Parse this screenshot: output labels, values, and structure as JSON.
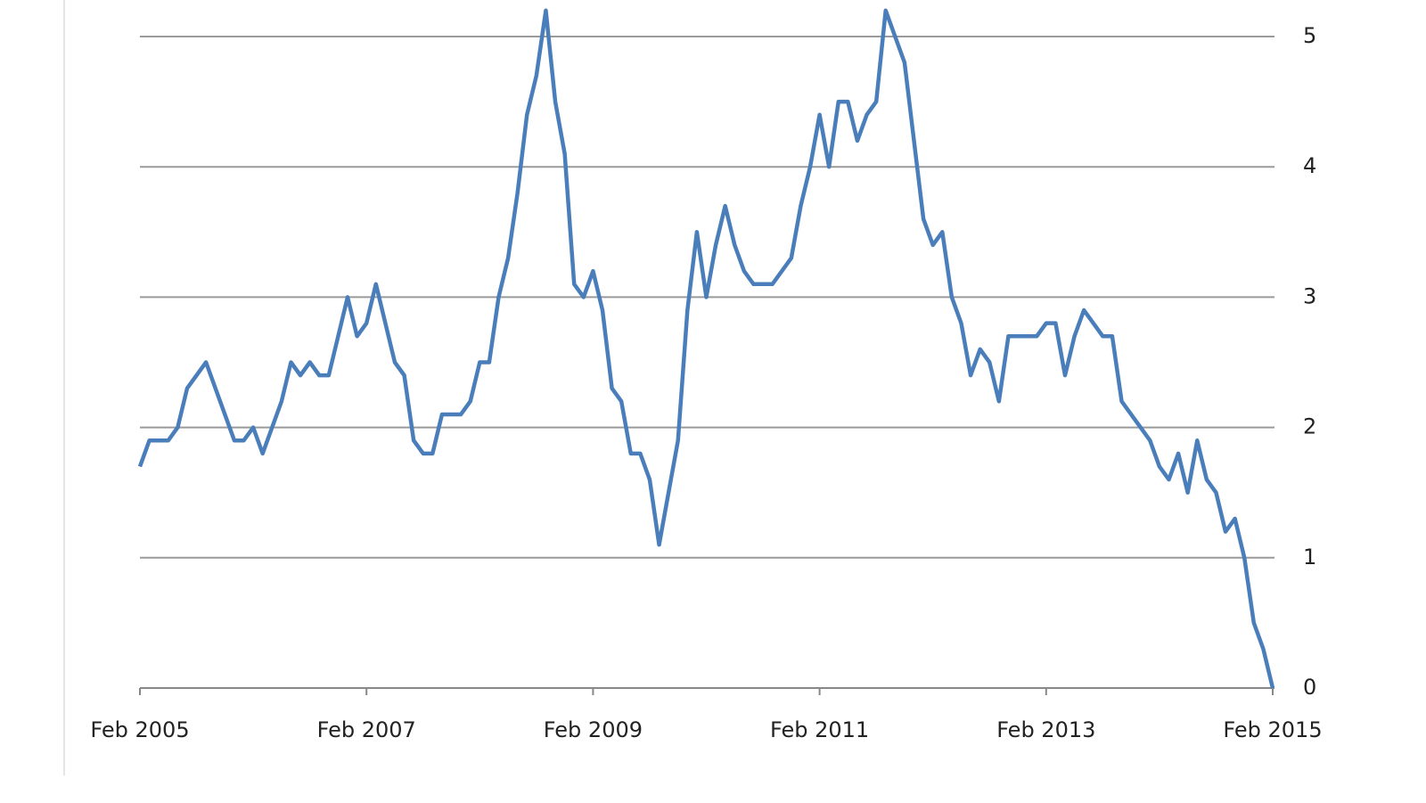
{
  "chart_data": {
    "type": "line",
    "categories": [
      "Feb 2005",
      null,
      null,
      null,
      null,
      null,
      null,
      null,
      null,
      null,
      null,
      null,
      null,
      null,
      null,
      null,
      null,
      null,
      null,
      null,
      null,
      null,
      null,
      null,
      "Feb 2007",
      null,
      null,
      null,
      null,
      null,
      null,
      null,
      null,
      null,
      null,
      null,
      null,
      null,
      null,
      null,
      null,
      null,
      null,
      null,
      null,
      null,
      null,
      null,
      "Feb 2009",
      null,
      null,
      null,
      null,
      null,
      null,
      null,
      null,
      null,
      null,
      null,
      null,
      null,
      null,
      null,
      null,
      null,
      null,
      null,
      null,
      null,
      null,
      null,
      "Feb 2011",
      null,
      null,
      null,
      null,
      null,
      null,
      null,
      null,
      null,
      null,
      null,
      null,
      null,
      null,
      null,
      null,
      null,
      null,
      null,
      null,
      null,
      null,
      null,
      "Feb 2013",
      null,
      null,
      null,
      null,
      null,
      null,
      null,
      null,
      null,
      null,
      null,
      null,
      null,
      null,
      null,
      null,
      null,
      null,
      null,
      null,
      null,
      null,
      null,
      "Feb 2015"
    ],
    "values": [
      1.7,
      1.9,
      1.9,
      1.9,
      2.0,
      2.3,
      2.4,
      2.5,
      2.3,
      2.1,
      1.9,
      1.9,
      2.0,
      1.8,
      2.0,
      2.2,
      2.5,
      2.4,
      2.5,
      2.4,
      2.4,
      2.7,
      3.0,
      2.7,
      2.8,
      3.1,
      2.8,
      2.5,
      2.4,
      1.9,
      1.8,
      1.8,
      2.1,
      2.1,
      2.1,
      2.2,
      2.5,
      2.5,
      3.0,
      3.3,
      3.8,
      4.4,
      4.7,
      5.2,
      4.5,
      4.1,
      3.1,
      3.0,
      3.2,
      2.9,
      2.3,
      2.2,
      1.8,
      1.8,
      1.6,
      1.1,
      1.5,
      1.9,
      2.9,
      3.5,
      3.0,
      3.4,
      3.7,
      3.4,
      3.2,
      3.1,
      3.1,
      3.1,
      3.2,
      3.3,
      3.7,
      4.0,
      4.4,
      4.0,
      4.5,
      4.5,
      4.2,
      4.4,
      4.5,
      5.2,
      5.0,
      4.8,
      4.2,
      3.6,
      3.4,
      3.5,
      3.0,
      2.8,
      2.4,
      2.6,
      2.5,
      2.2,
      2.7,
      2.7,
      2.7,
      2.7,
      2.8,
      2.8,
      2.4,
      2.7,
      2.9,
      2.8,
      2.7,
      2.7,
      2.2,
      2.1,
      2.0,
      1.9,
      1.7,
      1.6,
      1.8,
      1.5,
      1.9,
      1.6,
      1.5,
      1.2,
      1.3,
      1.0,
      0.5,
      0.3,
      0.0
    ],
    "color": "#4a7ebb",
    "ylim": [
      0,
      5
    ],
    "yticks": [
      0,
      1,
      2,
      3,
      4,
      5
    ],
    "grid": true
  }
}
